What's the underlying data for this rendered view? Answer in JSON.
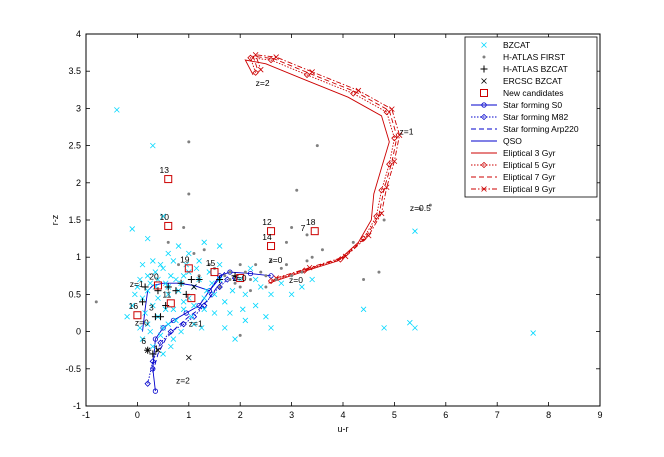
{
  "chart_data": {
    "type": "scatter",
    "xlabel": "u-r",
    "ylabel": "r-z",
    "xlim": [
      -1,
      9
    ],
    "ylim": [
      -1,
      4
    ],
    "xticks": [
      "-1",
      "0",
      "1",
      "2",
      "3",
      "4",
      "5",
      "6",
      "7",
      "8",
      "9"
    ],
    "yticks": [
      "-1",
      "-0.5",
      "0",
      "0.5",
      "1",
      "1.5",
      "2",
      "2.5",
      "3",
      "3.5",
      "4"
    ],
    "legend_position": "top-right",
    "grid": false,
    "colors": {
      "cyan": "#00d8ff",
      "gray": "#808080",
      "black": "#000000",
      "red": "#cc0000",
      "blue": "#0000cc"
    },
    "legend": [
      "BZCAT",
      "H-ATLAS FIRST",
      "H-ATLAS BZCAT",
      "ERCSC BZCAT",
      "New candidates",
      "Star forming S0",
      "Star forming M82",
      "Star forming Arp220",
      "QSO",
      "Eliptical 3 Gyr",
      "Eliptical 5 Gyr",
      "Eliptical 7 Gyr",
      "Eliptical 9 Gyr"
    ],
    "bzcat": [
      [
        -0.4,
        2.98
      ],
      [
        0.3,
        2.5
      ],
      [
        0.8,
        1.15
      ],
      [
        0.5,
        1.55
      ],
      [
        -0.1,
        1.38
      ],
      [
        0.2,
        1.25
      ],
      [
        0.6,
        1.05
      ],
      [
        1.0,
        1.05
      ],
      [
        1.3,
        1.2
      ],
      [
        1.6,
        1.15
      ],
      [
        2.1,
        0.5
      ],
      [
        2.3,
        0.35
      ],
      [
        2.5,
        0.2
      ],
      [
        2.1,
        0.15
      ],
      [
        1.8,
        0.25
      ],
      [
        1.9,
        -0.1
      ],
      [
        2.6,
        0.05
      ],
      [
        3.0,
        0.5
      ],
      [
        3.4,
        0.7
      ],
      [
        4.4,
        0.3
      ],
      [
        4.8,
        0.05
      ],
      [
        5.3,
        0.12
      ],
      [
        5.4,
        0.05
      ],
      [
        5.4,
        1.35
      ],
      [
        7.7,
        -0.02
      ],
      [
        0.1,
        0.9
      ],
      [
        0.3,
        0.95
      ],
      [
        -0.1,
        0.35
      ],
      [
        -0.2,
        0.2
      ],
      [
        0.05,
        0.05
      ],
      [
        0.1,
        -0.1
      ],
      [
        0.3,
        -0.2
      ],
      [
        0.5,
        -0.3
      ],
      [
        0.6,
        0.1
      ],
      [
        0.7,
        0.3
      ],
      [
        0.9,
        0.4
      ],
      [
        1.1,
        0.1
      ],
      [
        1.3,
        0.3
      ],
      [
        1.5,
        0.5
      ],
      [
        1.7,
        0.4
      ],
      [
        0.2,
        0.55
      ],
      [
        0.4,
        0.7
      ],
      [
        0.5,
        0.85
      ],
      [
        0.7,
        0.95
      ],
      [
        0.9,
        0.75
      ],
      [
        1.1,
        0.6
      ],
      [
        1.4,
        0.8
      ],
      [
        1.6,
        0.7
      ],
      [
        2.0,
        0.7
      ],
      [
        2.2,
        0.85
      ],
      [
        0.0,
        0.6
      ],
      [
        0.1,
        0.45
      ],
      [
        0.3,
        0.35
      ],
      [
        0.4,
        0.2
      ],
      [
        0.6,
        0.5
      ],
      [
        0.8,
        0.55
      ],
      [
        1.0,
        0.45
      ],
      [
        1.2,
        0.7
      ],
      [
        1.5,
        0.25
      ],
      [
        1.7,
        0.05
      ],
      [
        0.2,
        0.75
      ],
      [
        0.35,
        0.8
      ],
      [
        0.55,
        0.65
      ],
      [
        0.75,
        0.7
      ],
      [
        0.95,
        0.9
      ],
      [
        1.15,
        0.85
      ],
      [
        0.15,
        0.25
      ],
      [
        0.25,
        0.0
      ],
      [
        0.45,
        -0.05
      ],
      [
        0.65,
        -0.2
      ],
      [
        0.85,
        0.0
      ],
      [
        1.05,
        0.2
      ],
      [
        1.25,
        0.05
      ],
      [
        0.05,
        0.7
      ],
      [
        -0.05,
        0.5
      ],
      [
        0.35,
        0.6
      ],
      [
        0.65,
        0.75
      ],
      [
        0.85,
        0.65
      ],
      [
        1.35,
        0.55
      ],
      [
        1.45,
        0.65
      ],
      [
        1.85,
        0.55
      ],
      [
        2.05,
        0.3
      ],
      [
        2.4,
        0.6
      ],
      [
        2.6,
        0.5
      ],
      [
        3.2,
        0.6
      ],
      [
        1.2,
        0.95
      ],
      [
        1.0,
        0.8
      ],
      [
        0.4,
        0.45
      ],
      [
        0.55,
        0.3
      ],
      [
        0.75,
        0.15
      ],
      [
        0.25,
        0.65
      ],
      [
        0.45,
        0.9
      ],
      [
        0.6,
        0.6
      ],
      [
        0.9,
        0.3
      ],
      [
        1.1,
        0.35
      ],
      [
        1.3,
        0.45
      ],
      [
        0.2,
        0.1
      ],
      [
        0.5,
        0.05
      ],
      [
        0.7,
        -0.1
      ],
      [
        1.6,
        0.9
      ],
      [
        2.3,
        0.7
      ],
      [
        2.8,
        0.65
      ]
    ],
    "hatlas_first": [
      [
        1.0,
        2.55
      ],
      [
        1.0,
        1.85
      ],
      [
        0.6,
        1.2
      ],
      [
        1.1,
        1.05
      ],
      [
        1.3,
        1.1
      ],
      [
        0.8,
        0.9
      ],
      [
        1.5,
        0.85
      ],
      [
        1.8,
        0.8
      ],
      [
        2.0,
        0.9
      ],
      [
        2.3,
        0.9
      ],
      [
        2.6,
        0.95
      ],
      [
        2.8,
        0.85
      ],
      [
        2.9,
        1.2
      ],
      [
        3.0,
        1.4
      ],
      [
        3.1,
        1.9
      ],
      [
        3.5,
        2.5
      ],
      [
        3.4,
        1.0
      ],
      [
        3.2,
        0.8
      ],
      [
        3.0,
        0.75
      ],
      [
        2.5,
        0.75
      ],
      [
        2.2,
        0.7
      ],
      [
        2.0,
        0.6
      ],
      [
        1.8,
        0.7
      ],
      [
        1.6,
        0.6
      ],
      [
        2.4,
        0.8
      ],
      [
        2.7,
        0.7
      ],
      [
        3.6,
        1.1
      ],
      [
        4.2,
        1.2
      ],
      [
        4.7,
        0.8
      ],
      [
        4.8,
        1.5
      ],
      [
        5.5,
        1.65
      ],
      [
        5.7,
        1.7
      ],
      [
        4.4,
        0.7
      ],
      [
        3.3,
        0.95
      ],
      [
        2.1,
        0.8
      ],
      [
        1.4,
        0.9
      ],
      [
        1.2,
        0.75
      ],
      [
        2.9,
        0.9
      ],
      [
        3.3,
        1.3
      ],
      [
        1.7,
        0.75
      ],
      [
        1.9,
        0.65
      ],
      [
        2.2,
        0.55
      ],
      [
        2.5,
        0.6
      ],
      [
        -0.8,
        0.4
      ],
      [
        2.0,
        -0.05
      ],
      [
        0.9,
        1.4
      ]
    ],
    "hatlas_bzcat": [
      [
        0.1,
        0.4
      ],
      [
        0.35,
        0.2
      ],
      [
        0.45,
        0.2
      ],
      [
        0.2,
        -0.25
      ],
      [
        0.3,
        -0.3
      ],
      [
        0.4,
        0.55
      ],
      [
        0.6,
        0.6
      ],
      [
        0.75,
        0.55
      ],
      [
        0.85,
        0.65
      ],
      [
        1.05,
        0.7
      ],
      [
        1.2,
        0.7
      ],
      [
        0.55,
        0.35
      ],
      [
        0.95,
        0.5
      ],
      [
        1.6,
        0.7
      ],
      [
        1.9,
        0.75
      ],
      [
        0.15,
        0.6
      ]
    ],
    "ercsc_bzcat": [
      [
        1.0,
        -0.35
      ],
      [
        0.4,
        -0.25
      ],
      [
        0.2,
        -0.25
      ],
      [
        1.1,
        0.6
      ]
    ],
    "new_candidates": [
      [
        0.6,
        2.05
      ],
      [
        0.6,
        1.42
      ],
      [
        2.6,
        1.35
      ],
      [
        2.6,
        1.15
      ],
      [
        3.45,
        1.35
      ],
      [
        1.0,
        0.85
      ],
      [
        1.5,
        0.8
      ],
      [
        0.4,
        0.62
      ],
      [
        0.65,
        0.38
      ],
      [
        1.05,
        0.45
      ],
      [
        0.0,
        0.22
      ],
      [
        2.0,
        0.72
      ]
    ],
    "candidate_labels": [
      {
        "text": "13",
        "x": 0.6,
        "y": 2.05
      },
      {
        "text": "10",
        "x": 0.6,
        "y": 1.42
      },
      {
        "text": "12",
        "x": 2.6,
        "y": 1.35
      },
      {
        "text": "14",
        "x": 2.6,
        "y": 1.15
      },
      {
        "text": "18",
        "x": 3.45,
        "y": 1.35
      },
      {
        "text": "7",
        "x": 3.3,
        "y": 1.27
      },
      {
        "text": "19",
        "x": 1.0,
        "y": 0.85
      },
      {
        "text": "15",
        "x": 1.5,
        "y": 0.8
      },
      {
        "text": "20",
        "x": 0.4,
        "y": 0.62
      },
      {
        "text": "11",
        "x": 0.65,
        "y": 0.38
      },
      {
        "text": "3",
        "x": 0.35,
        "y": 0.2
      },
      {
        "text": "16",
        "x": 0.0,
        "y": 0.22
      },
      {
        "text": "6",
        "x": 0.2,
        "y": -0.25
      },
      {
        "text": "1",
        "x": 0.45,
        "y": -0.35
      }
    ],
    "z_labels": [
      {
        "text": "z=2",
        "x": 2.3,
        "y": 3.3
      },
      {
        "text": "z=1",
        "x": 5.1,
        "y": 2.65
      },
      {
        "text": "z=0.5",
        "x": 5.3,
        "y": 1.62
      },
      {
        "text": "z=0",
        "x": 2.95,
        "y": 0.65
      },
      {
        "text": "z=0",
        "x": 2.55,
        "y": 0.92
      },
      {
        "text": "z=0",
        "x": 1.85,
        "y": 0.68
      },
      {
        "text": "z=1",
        "x": -0.15,
        "y": 0.6
      },
      {
        "text": "z=0",
        "x": -0.05,
        "y": 0.08
      },
      {
        "text": "z=1",
        "x": 1.0,
        "y": 0.07
      },
      {
        "text": "z=2",
        "x": 0.75,
        "y": -0.7
      }
    ],
    "series": [
      {
        "name": "Star forming S0",
        "style": "circle-solid",
        "x": [
          0.35,
          0.3,
          0.35,
          0.5,
          0.7,
          0.95,
          1.2,
          1.4,
          1.6,
          1.8,
          2.2,
          2.6
        ],
        "y": [
          -0.8,
          -0.5,
          -0.1,
          0.05,
          0.15,
          0.25,
          0.35,
          0.55,
          0.75,
          0.8,
          0.78,
          0.75
        ]
      },
      {
        "name": "Star forming M82",
        "style": "diamond-dotted",
        "x": [
          0.2,
          0.3,
          0.45,
          0.65,
          0.9,
          1.1,
          1.3,
          1.45,
          1.6,
          1.75,
          1.9
        ],
        "y": [
          -0.7,
          -0.4,
          -0.15,
          0.0,
          0.1,
          0.2,
          0.35,
          0.5,
          0.6,
          0.7,
          0.72
        ]
      },
      {
        "name": "Star forming Arp220",
        "style": "dashed",
        "x": [
          0.3,
          0.4,
          0.55,
          0.75,
          1.0,
          1.2,
          1.4,
          1.55,
          1.7
        ],
        "y": [
          -0.55,
          -0.3,
          -0.1,
          0.05,
          0.2,
          0.3,
          0.45,
          0.6,
          0.7
        ]
      },
      {
        "name": "QSO",
        "style": "solid",
        "x": [
          0.1,
          0.15,
          0.2,
          0.3,
          0.5,
          0.8,
          1.1,
          1.4,
          1.7
        ],
        "y": [
          0.0,
          0.3,
          0.55,
          0.62,
          0.65,
          0.65,
          0.62,
          0.55,
          0.8
        ]
      },
      {
        "name": "Eliptical 3 Gyr",
        "style": "solid",
        "x": [
          2.55,
          3.2,
          3.9,
          4.3,
          4.55,
          4.6,
          4.75,
          4.9,
          4.75,
          4.1,
          3.2,
          2.5,
          2.1,
          2.25
        ],
        "y": [
          0.65,
          0.8,
          0.95,
          1.2,
          1.5,
          1.85,
          2.2,
          2.55,
          2.9,
          3.15,
          3.4,
          3.6,
          3.65,
          3.45
        ]
      },
      {
        "name": "Eliptical 5 Gyr",
        "style": "diamond-dotted",
        "x": [
          2.6,
          3.25,
          3.95,
          4.4,
          4.65,
          4.75,
          4.9,
          5.0,
          4.85,
          4.2,
          3.3,
          2.6,
          2.2,
          2.3
        ],
        "y": [
          0.68,
          0.82,
          0.97,
          1.25,
          1.55,
          1.9,
          2.25,
          2.6,
          2.95,
          3.2,
          3.45,
          3.65,
          3.68,
          3.48
        ]
      },
      {
        "name": "Eliptical 7 Gyr",
        "style": "dashed",
        "x": [
          2.65,
          3.3,
          4.0,
          4.45,
          4.7,
          4.8,
          4.95,
          5.05,
          4.9,
          4.25,
          3.35,
          2.65,
          2.25,
          2.35
        ],
        "y": [
          0.7,
          0.84,
          0.99,
          1.27,
          1.57,
          1.92,
          2.27,
          2.62,
          2.97,
          3.22,
          3.47,
          3.67,
          3.7,
          3.5
        ]
      },
      {
        "name": "Eliptical 9 Gyr",
        "style": "x-dashdot",
        "x": [
          2.7,
          3.35,
          4.05,
          4.5,
          4.75,
          4.85,
          5.0,
          5.1,
          4.95,
          4.3,
          3.4,
          2.7,
          2.3,
          2.4
        ],
        "y": [
          0.72,
          0.86,
          1.01,
          1.29,
          1.59,
          1.94,
          2.29,
          2.64,
          2.99,
          3.24,
          3.49,
          3.69,
          3.72,
          3.52
        ]
      }
    ]
  }
}
